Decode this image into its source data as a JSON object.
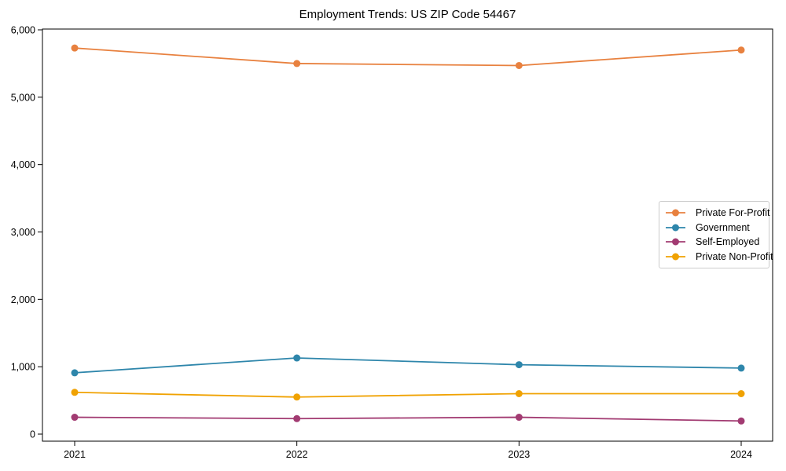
{
  "chart_data": {
    "type": "line",
    "title": "Employment Trends: US ZIP Code 54467",
    "x_categories": [
      "2021",
      "2022",
      "2023",
      "2024"
    ],
    "series": [
      {
        "name": "Private For-Profit",
        "color": "#E8813F",
        "values": [
          5730,
          5500,
          5470,
          5700
        ]
      },
      {
        "name": "Government",
        "color": "#2E86AB",
        "values": [
          910,
          1130,
          1030,
          980
        ]
      },
      {
        "name": "Self-Employed",
        "color": "#A23B72",
        "values": [
          250,
          230,
          250,
          195
        ]
      },
      {
        "name": "Private Non-Profit",
        "color": "#F0A202",
        "values": [
          620,
          550,
          600,
          600
        ]
      }
    ],
    "xlabel": "",
    "ylabel": "",
    "ylim": [
      0,
      6000
    ],
    "yticks": [
      0,
      1000,
      2000,
      3000,
      4000,
      5000,
      6000
    ],
    "ytick_labels": [
      "0",
      "1,000",
      "2,000",
      "3,000",
      "4,000",
      "5,000",
      "6,000"
    ],
    "grid": false,
    "legend_position": "center right",
    "marker": "circle",
    "axis_color": "#000000",
    "background": "#ffffff"
  }
}
